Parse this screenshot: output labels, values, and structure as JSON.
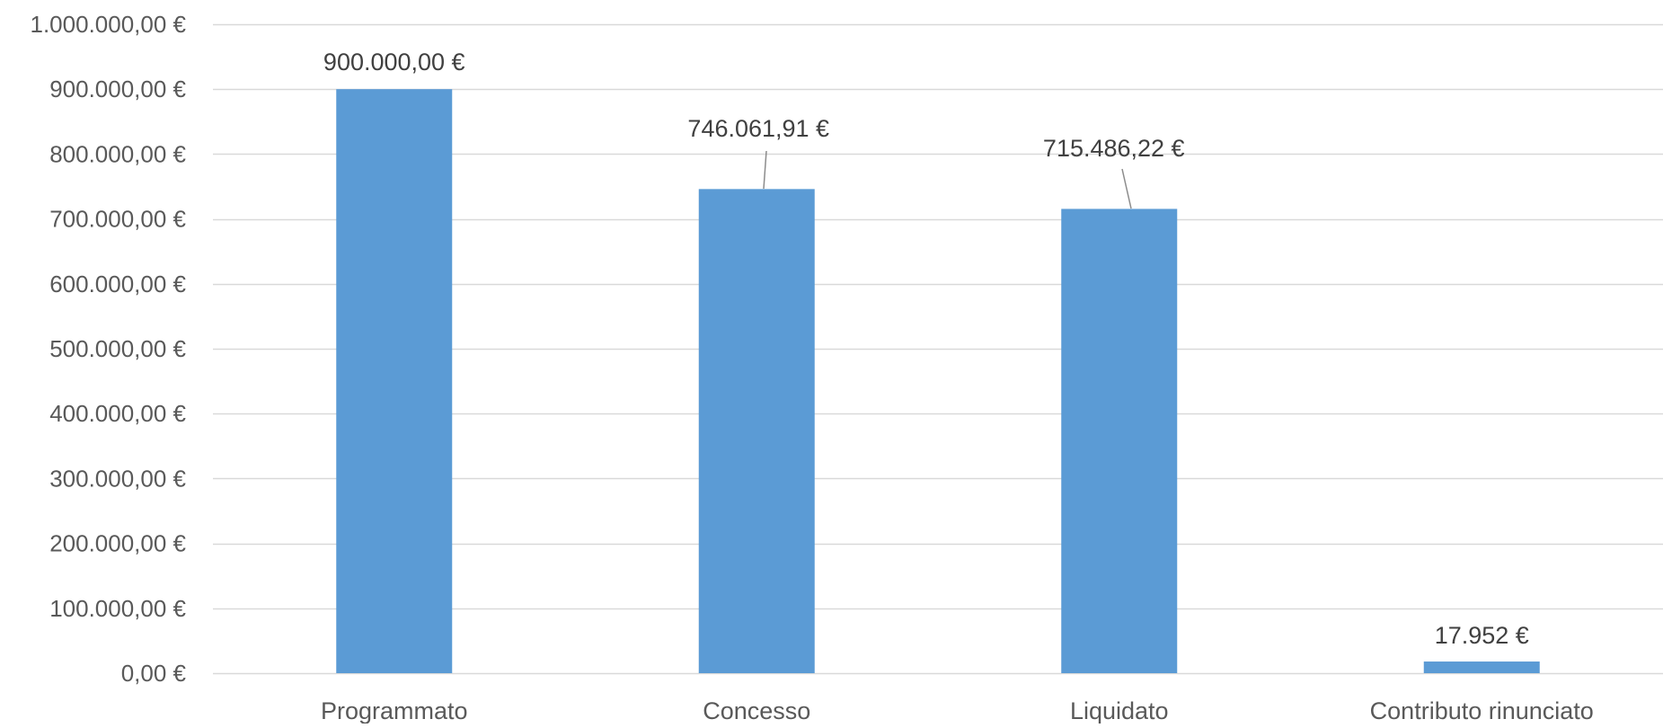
{
  "chart_data": {
    "type": "bar",
    "categories": [
      "Programmato",
      "Concesso",
      "Liquidato",
      "Contributo rinunciato"
    ],
    "values": [
      900000.0,
      746061.91,
      715486.22,
      17952
    ],
    "data_labels": [
      "900.000,00 €",
      "746.061,91 €",
      "715.486,22 €",
      "17.952 €"
    ],
    "ylim": [
      0,
      1000000
    ],
    "y_ticks": [
      0,
      100000,
      200000,
      300000,
      400000,
      500000,
      600000,
      700000,
      800000,
      900000,
      1000000
    ],
    "y_tick_labels": [
      "0,00 €",
      "100.000,00 €",
      "200.000,00 €",
      "300.000,00 €",
      "400.000,00 €",
      "500.000,00 €",
      "600.000,00 €",
      "700.000,00 €",
      "800.000,00 €",
      "900.000,00 €",
      "1.000.000,00 €"
    ],
    "title": "",
    "xlabel": "",
    "ylabel": "",
    "grid": true,
    "legend": "none",
    "bar_color": "#5B9BD5",
    "grid_color": "#D9D9D9",
    "text_color": "#595959"
  }
}
